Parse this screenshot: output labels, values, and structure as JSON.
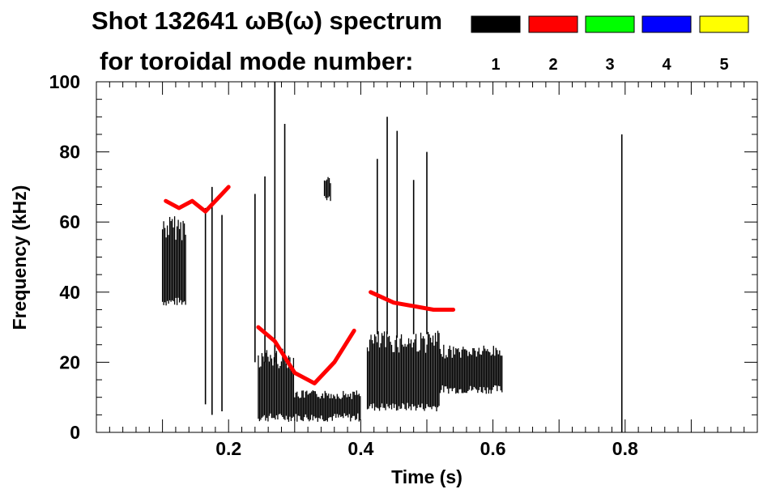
{
  "chart_data": {
    "type": "heatmap",
    "title_line1": "Shot 132641 ωB(ω) spectrum",
    "title_line2": "for toroidal mode number:",
    "xlabel": "Time (s)",
    "ylabel": "Frequency (kHz)",
    "xlim": [
      0.0,
      1.0
    ],
    "ylim": [
      0,
      100
    ],
    "x_ticks": [
      0.2,
      0.4,
      0.6,
      0.8
    ],
    "x_tick_labels": [
      "0.2",
      "0.4",
      "0.6",
      "0.8"
    ],
    "y_ticks": [
      0,
      20,
      40,
      60,
      80,
      100
    ],
    "y_tick_labels": [
      "0",
      "20",
      "40",
      "60",
      "80",
      "100"
    ],
    "legend": [
      {
        "label": "1",
        "color": "#000000"
      },
      {
        "label": "2",
        "color": "#ff0000"
      },
      {
        "label": "3",
        "color": "#00ff00"
      },
      {
        "label": "4",
        "color": "#0000ff"
      },
      {
        "label": "5",
        "color": "#ffff00"
      }
    ],
    "regions": [
      {
        "mode": "1",
        "t": [
          0.1,
          0.135
        ],
        "f": [
          36,
          62
        ]
      },
      {
        "mode": "1",
        "t": [
          0.245,
          0.3
        ],
        "f": [
          3,
          24
        ]
      },
      {
        "mode": "1",
        "t": [
          0.3,
          0.4
        ],
        "f": [
          3,
          12
        ]
      },
      {
        "mode": "1",
        "t": [
          0.41,
          0.52
        ],
        "f": [
          6,
          29
        ]
      },
      {
        "mode": "1",
        "t": [
          0.52,
          0.615
        ],
        "f": [
          11,
          25
        ]
      },
      {
        "mode": "1",
        "t": [
          0.345,
          0.355
        ],
        "f": [
          66,
          73
        ]
      }
    ],
    "traces": [
      {
        "mode": "2",
        "t": [
          0.245,
          0.27,
          0.3,
          0.33,
          0.36,
          0.39
        ],
        "f": [
          30,
          26,
          17,
          14,
          20,
          29
        ]
      },
      {
        "mode": "2",
        "t": [
          0.415,
          0.45,
          0.48,
          0.51,
          0.54
        ],
        "f": [
          40,
          37,
          36,
          35,
          35
        ]
      },
      {
        "mode": "2",
        "t": [
          0.105,
          0.125,
          0.145,
          0.165,
          0.185,
          0.2
        ],
        "f": [
          66,
          64,
          66,
          63,
          67,
          70
        ]
      }
    ],
    "spikes": [
      {
        "t": 0.165,
        "f": [
          8,
          64
        ]
      },
      {
        "t": 0.175,
        "f": [
          5,
          70
        ]
      },
      {
        "t": 0.19,
        "f": [
          6,
          62
        ]
      },
      {
        "t": 0.24,
        "f": [
          20,
          68
        ]
      },
      {
        "t": 0.255,
        "f": [
          20,
          73
        ]
      },
      {
        "t": 0.27,
        "f": [
          20,
          100
        ]
      },
      {
        "t": 0.285,
        "f": [
          22,
          88
        ]
      },
      {
        "t": 0.425,
        "f": [
          28,
          78
        ]
      },
      {
        "t": 0.44,
        "f": [
          28,
          90
        ]
      },
      {
        "t": 0.455,
        "f": [
          27,
          86
        ]
      },
      {
        "t": 0.48,
        "f": [
          28,
          72
        ]
      },
      {
        "t": 0.5,
        "f": [
          28,
          80
        ]
      },
      {
        "t": 0.795,
        "f": [
          0,
          85
        ]
      }
    ]
  }
}
